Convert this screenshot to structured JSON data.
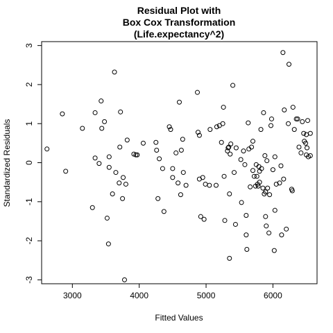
{
  "chart_data": {
    "type": "scatter",
    "title_lines": [
      "Residual Plot with",
      "Box Cox Transformation",
      "(Life.expectancy^2)"
    ],
    "xlabel": "Fitted Values",
    "ylabel": "Standardized Residuals",
    "xlim": [
      2540,
      6660
    ],
    "ylim": [
      -3.1,
      3.1
    ],
    "xticks": [
      3000,
      4000,
      5000,
      6000
    ],
    "yticks": [
      -3,
      -2,
      -1,
      0,
      1,
      2,
      3
    ],
    "grid": false,
    "points": [
      [
        2620,
        0.35
      ],
      [
        2850,
        1.25
      ],
      [
        2900,
        -0.22
      ],
      [
        3150,
        0.88
      ],
      [
        3300,
        -1.15
      ],
      [
        3340,
        1.28
      ],
      [
        3340,
        0.12
      ],
      [
        3400,
        -0.02
      ],
      [
        3430,
        1.58
      ],
      [
        3440,
        0.88
      ],
      [
        3480,
        1.05
      ],
      [
        3520,
        -1.42
      ],
      [
        3540,
        -2.08
      ],
      [
        3550,
        0.15
      ],
      [
        3550,
        -0.12
      ],
      [
        3600,
        -0.8
      ],
      [
        3630,
        2.32
      ],
      [
        3650,
        -0.25
      ],
      [
        3700,
        -0.52
      ],
      [
        3710,
        0.4
      ],
      [
        3720,
        1.3
      ],
      [
        3750,
        -0.92
      ],
      [
        3760,
        -0.38
      ],
      [
        3780,
        -3.0
      ],
      [
        3800,
        -0.55
      ],
      [
        3820,
        0.58
      ],
      [
        3920,
        0.22
      ],
      [
        3950,
        0.2
      ],
      [
        3970,
        0.2
      ],
      [
        4060,
        0.5
      ],
      [
        4250,
        0.52
      ],
      [
        4260,
        0.32
      ],
      [
        4280,
        -0.92
      ],
      [
        4300,
        0.1
      ],
      [
        4350,
        -0.15
      ],
      [
        4370,
        -1.25
      ],
      [
        4450,
        0.92
      ],
      [
        4470,
        0.85
      ],
      [
        4500,
        -0.38
      ],
      [
        4500,
        -0.15
      ],
      [
        4550,
        0.25
      ],
      [
        4580,
        -0.52
      ],
      [
        4600,
        1.55
      ],
      [
        4620,
        -0.82
      ],
      [
        4630,
        0.32
      ],
      [
        4650,
        0.6
      ],
      [
        4660,
        -0.25
      ],
      [
        4700,
        -0.58
      ],
      [
        4870,
        1.8
      ],
      [
        4880,
        0.78
      ],
      [
        4900,
        -0.42
      ],
      [
        4900,
        0.7
      ],
      [
        4920,
        -1.38
      ],
      [
        4950,
        -0.38
      ],
      [
        4970,
        -1.45
      ],
      [
        4990,
        -0.55
      ],
      [
        5050,
        -0.58
      ],
      [
        5060,
        0.85
      ],
      [
        5150,
        -0.58
      ],
      [
        5160,
        0.92
      ],
      [
        5200,
        0.95
      ],
      [
        5230,
        0.52
      ],
      [
        5250,
        1.0
      ],
      [
        5260,
        1.42
      ],
      [
        5270,
        -0.35
      ],
      [
        5280,
        -1.48
      ],
      [
        5320,
        0.3
      ],
      [
        5330,
        0.38
      ],
      [
        5340,
        0.4
      ],
      [
        5360,
        0.22
      ],
      [
        5350,
        -0.8
      ],
      [
        5350,
        -2.45
      ],
      [
        5370,
        0.48
      ],
      [
        5400,
        1.98
      ],
      [
        5420,
        -0.25
      ],
      [
        5440,
        -1.58
      ],
      [
        5450,
        0.38
      ],
      [
        5520,
        0.08
      ],
      [
        5530,
        -1.02
      ],
      [
        5560,
        0.3
      ],
      [
        5580,
        -0.05
      ],
      [
        5600,
        -1.35
      ],
      [
        5600,
        -1.85
      ],
      [
        5610,
        -2.22
      ],
      [
        5630,
        1.02
      ],
      [
        5640,
        0.35
      ],
      [
        5660,
        -0.62
      ],
      [
        5680,
        0.4
      ],
      [
        5700,
        -0.2
      ],
      [
        5700,
        0.55
      ],
      [
        5720,
        -0.35
      ],
      [
        5740,
        -0.6
      ],
      [
        5750,
        -0.05
      ],
      [
        5760,
        -0.35
      ],
      [
        5770,
        -0.55
      ],
      [
        5780,
        -0.6
      ],
      [
        5790,
        -0.1
      ],
      [
        5800,
        -0.22
      ],
      [
        5800,
        -0.5
      ],
      [
        5820,
        0.85
      ],
      [
        5830,
        -0.15
      ],
      [
        5850,
        -0.65
      ],
      [
        5860,
        1.28
      ],
      [
        5870,
        -0.8
      ],
      [
        5880,
        0.18
      ],
      [
        5890,
        -0.75
      ],
      [
        5890,
        -1.38
      ],
      [
        5900,
        -1.62
      ],
      [
        5910,
        0.05
      ],
      [
        5920,
        -0.65
      ],
      [
        5940,
        -1.8
      ],
      [
        5950,
        -0.82
      ],
      [
        5970,
        0.95
      ],
      [
        5980,
        1.12
      ],
      [
        6000,
        -0.18
      ],
      [
        6020,
        -2.25
      ],
      [
        6030,
        0.15
      ],
      [
        6030,
        -1.22
      ],
      [
        6050,
        -0.55
      ],
      [
        6100,
        -0.52
      ],
      [
        6120,
        -0.08
      ],
      [
        6130,
        -1.85
      ],
      [
        6150,
        2.82
      ],
      [
        6160,
        -0.42
      ],
      [
        6170,
        1.35
      ],
      [
        6200,
        -1.7
      ],
      [
        6230,
        1.0
      ],
      [
        6240,
        2.52
      ],
      [
        6280,
        -0.68
      ],
      [
        6290,
        -0.72
      ],
      [
        6300,
        1.42
      ],
      [
        6320,
        0.85
      ],
      [
        6350,
        1.12
      ],
      [
        6370,
        1.12
      ],
      [
        6390,
        0.4
      ],
      [
        6420,
        0.25
      ],
      [
        6440,
        1.05
      ],
      [
        6460,
        0.75
      ],
      [
        6470,
        0.55
      ],
      [
        6490,
        0.5
      ],
      [
        6500,
        0.72
      ],
      [
        6500,
        0.2
      ],
      [
        6510,
        0.38
      ],
      [
        6520,
        1.08
      ],
      [
        6530,
        0.15
      ],
      [
        6560,
        0.75
      ],
      [
        6560,
        0.18
      ]
    ]
  }
}
